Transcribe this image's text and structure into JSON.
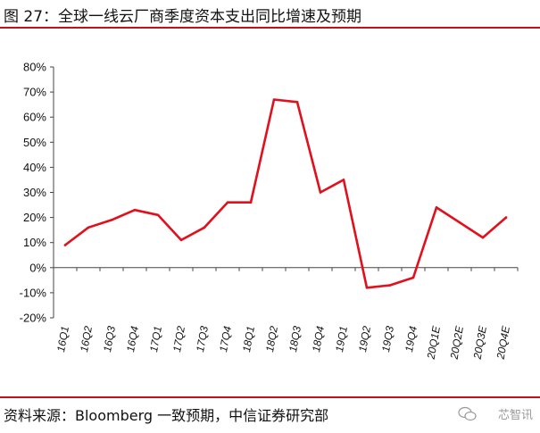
{
  "header": {
    "title": "图 27：全球一线云厂商季度资本支出同比增速及预期"
  },
  "footer": {
    "source": "资料来源：Bloomberg 一致预期，中信证券研究部"
  },
  "watermark": {
    "text": "芯智讯",
    "icon": "wechat-icon"
  },
  "colors": {
    "accent": "#c0121a",
    "series": "#e0101c",
    "axis": "#444444"
  },
  "chart_data": {
    "type": "line",
    "title": "",
    "xlabel": "",
    "ylabel": "",
    "categories": [
      "16Q1",
      "16Q2",
      "16Q3",
      "16Q4",
      "17Q1",
      "17Q2",
      "17Q3",
      "17Q4",
      "18Q1",
      "18Q2",
      "18Q3",
      "18Q4",
      "19Q1",
      "19Q2",
      "19Q3",
      "19Q4",
      "20Q1E",
      "20Q2E",
      "20Q3E",
      "20Q4E"
    ],
    "series": [
      {
        "values": [
          9,
          16,
          19,
          23,
          21,
          11,
          16,
          26,
          26,
          67,
          66,
          30,
          35,
          -8,
          -7,
          -4,
          24,
          18,
          12,
          20
        ]
      }
    ],
    "ylim": [
      -20,
      80
    ],
    "yticks": [
      "-20%",
      "-10%",
      "0%",
      "10%",
      "20%",
      "30%",
      "40%",
      "50%",
      "60%",
      "70%",
      "80%"
    ],
    "grid": false,
    "legend": "none"
  }
}
